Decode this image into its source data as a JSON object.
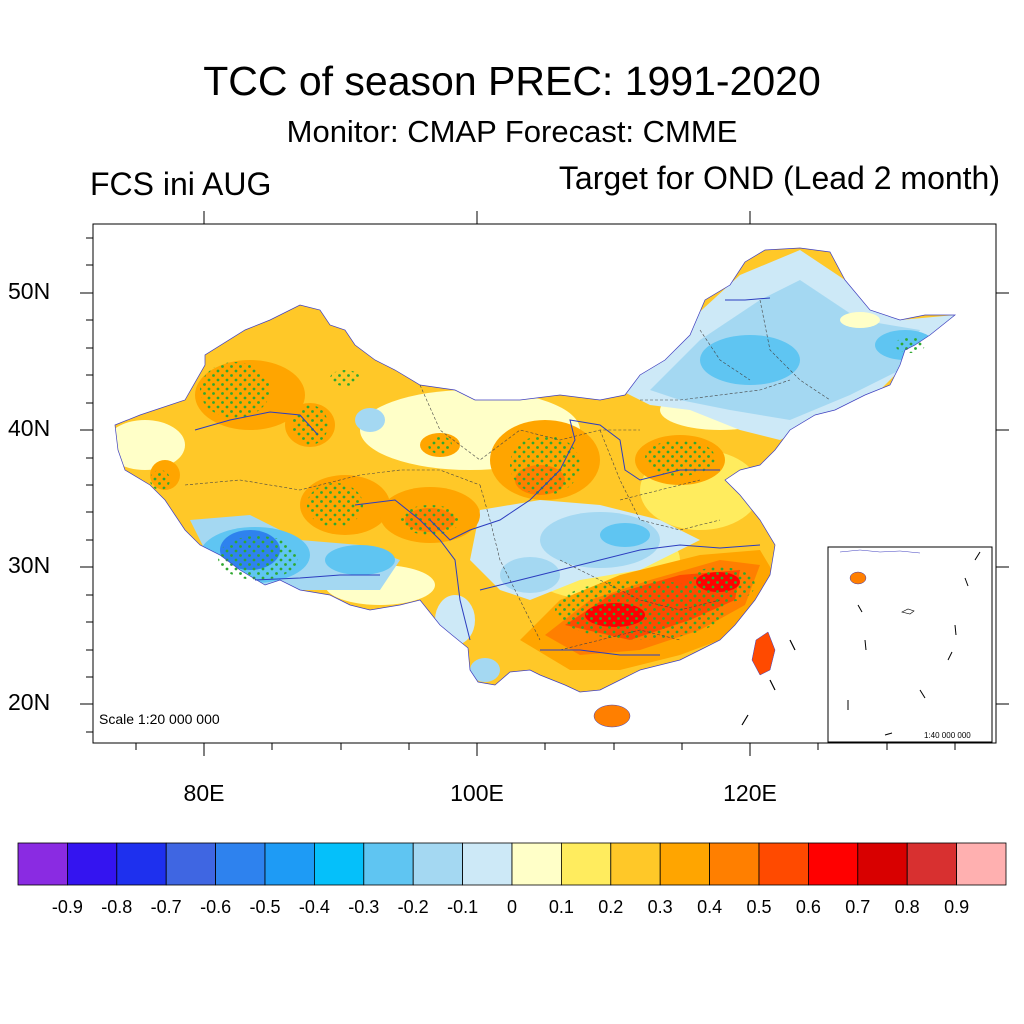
{
  "title": "TCC of season PREC: 1991-2020",
  "subtitle": "Monitor: CMAP   Forecast: CMME",
  "left_label": "FCS ini AUG",
  "right_label": "Target for OND (Lead 2 month)",
  "map": {
    "lat_labels": [
      "50N",
      "40N",
      "30N",
      "20N"
    ],
    "lon_labels": [
      "80E",
      "100E",
      "120E"
    ],
    "scale_main": "Scale 1:20 000 000",
    "scale_inset": "1:40 000 000"
  },
  "colorbar": {
    "colors": [
      "#8a2be2",
      "#3414f0",
      "#1e30ee",
      "#3f66e2",
      "#2e82ee",
      "#1e9bf5",
      "#05c0fa",
      "#5fc5f2",
      "#a4d8f2",
      "#cde9f7",
      "#ffffc8",
      "#ffec5e",
      "#ffc828",
      "#ffa500",
      "#ff7f00",
      "#ff4a00",
      "#ff0000",
      "#d80000",
      "#d83030",
      "#ffb0b0"
    ],
    "labels": [
      "-0.9",
      "-0.8",
      "-0.7",
      "-0.6",
      "-0.5",
      "-0.4",
      "-0.3",
      "-0.2",
      "-0.1",
      "0",
      "0.1",
      "0.2",
      "0.3",
      "0.4",
      "0.5",
      "0.6",
      "0.7",
      "0.8",
      "0.9"
    ]
  }
}
